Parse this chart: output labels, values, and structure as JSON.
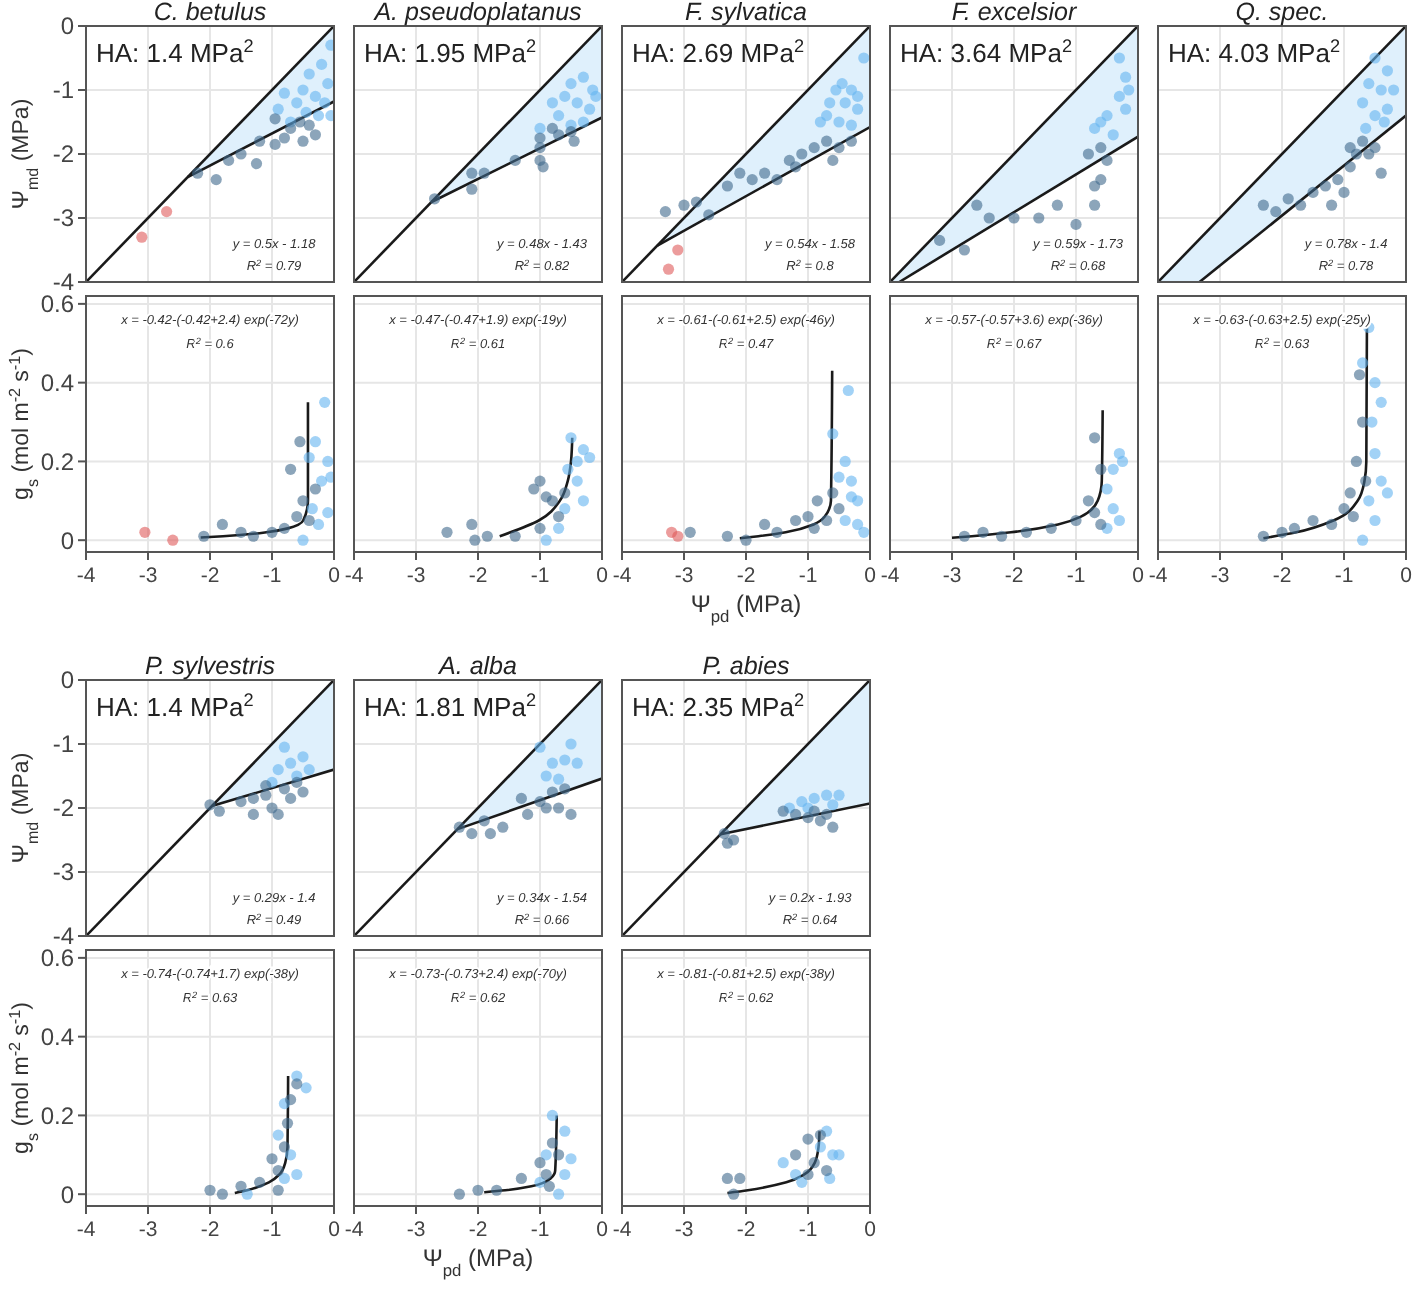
{
  "chart_data": [
    {
      "type": "scatter",
      "title": "C. betulus",
      "ylabel": "Ψ$_{md}$ (MPa)",
      "xlim": [
        -4,
        0
      ],
      "ylim": [
        -4,
        0
      ],
      "xticks": [
        -4,
        -3,
        -2,
        -1,
        0
      ],
      "yticks": [
        -4,
        -3,
        -2,
        -1,
        0
      ],
      "tick_labels": "y",
      "grid": true,
      "marker": "circle",
      "annotations": [
        "HA: 1.4 MPa$^{2}$",
        "y = 0.5x - 1.18",
        "R$^{2}$ = 0.79"
      ],
      "series": [
        {
          "type": "line",
          "marker": "none",
          "color": "#1a1a1a",
          "x": [
            -4,
            0
          ],
          "values": [
            -4,
            0
          ]
        },
        {
          "type": "line",
          "marker": "none",
          "color": "#1a1a1a",
          "x": [
            -2.36,
            0
          ],
          "values": [
            -2.36,
            -1.18
          ],
          "lower": [
            -2.36,
            -1.18
          ],
          "upper": [
            -2.36,
            0
          ]
        },
        {
          "color": "#64b4f0",
          "x": [
            -0.05,
            -0.2,
            -0.4,
            -0.1,
            -0.5,
            -0.3,
            -0.6,
            -0.15,
            -0.8,
            -0.45,
            -0.25,
            -0.7,
            -0.9,
            -0.05
          ],
          "values": [
            -0.3,
            -0.6,
            -0.75,
            -0.9,
            -1.0,
            -1.1,
            -1.2,
            -1.2,
            -1.05,
            -1.35,
            -1.4,
            -1.5,
            -1.3,
            -1.4
          ]
        },
        {
          "color": "#40698c",
          "x": [
            -2.2,
            -1.9,
            -1.7,
            -1.5,
            -1.25,
            -1.2,
            -0.95,
            -0.8,
            -0.95,
            -0.7,
            -0.55,
            -0.4,
            -0.3,
            -0.5
          ],
          "values": [
            -2.3,
            -2.4,
            -2.1,
            -2.0,
            -2.15,
            -1.8,
            -1.85,
            -1.75,
            -1.45,
            -1.6,
            -1.5,
            -1.55,
            -1.7,
            -1.8
          ]
        },
        {
          "color": "#e05a5a",
          "x": [
            -3.1,
            -2.7
          ],
          "values": [
            -3.3,
            -2.9
          ]
        }
      ]
    },
    {
      "type": "scatter",
      "title": "A. pseudoplatanus",
      "xlim": [
        -4,
        0
      ],
      "ylim": [
        -4,
        0
      ],
      "xticks": [
        -4,
        -3,
        -2,
        -1,
        0
      ],
      "yticks": [
        -4,
        -3,
        -2,
        -1,
        0
      ],
      "tick_labels": false,
      "grid": true,
      "marker": "circle",
      "annotations": [
        "HA: 1.95 MPa$^{2}$",
        "y = 0.48x - 1.43",
        "R$^{2}$ = 0.82"
      ],
      "series": [
        {
          "type": "line",
          "marker": "none",
          "color": "#1a1a1a",
          "x": [
            -4,
            0
          ],
          "values": [
            -4,
            0
          ]
        },
        {
          "type": "line",
          "marker": "none",
          "color": "#1a1a1a",
          "x": [
            -2.75,
            0
          ],
          "values": [
            -2.75,
            -1.43
          ],
          "lower": [
            -2.75,
            -1.43
          ],
          "upper": [
            -2.75,
            0
          ]
        },
        {
          "color": "#64b4f0",
          "x": [
            -0.1,
            -0.3,
            -0.5,
            -0.2,
            -0.4,
            -0.6,
            -0.7,
            -0.3,
            -0.5,
            -0.15,
            -1.0,
            -0.8
          ],
          "values": [
            -1.1,
            -0.8,
            -0.9,
            -1.3,
            -1.2,
            -1.1,
            -1.4,
            -1.5,
            -1.55,
            -1.0,
            -1.6,
            -1.2
          ]
        },
        {
          "color": "#40698c",
          "x": [
            -2.7,
            -2.1,
            -2.1,
            -1.9,
            -1.4,
            -1.0,
            -1.0,
            -0.95,
            -1.0,
            -0.7,
            -0.5,
            -0.45,
            -0.8
          ],
          "values": [
            -2.7,
            -2.55,
            -2.3,
            -2.3,
            -2.1,
            -1.9,
            -2.1,
            -2.2,
            -1.75,
            -1.7,
            -1.65,
            -1.8,
            -1.6
          ]
        }
      ]
    },
    {
      "type": "scatter",
      "title": "F. sylvatica",
      "xlim": [
        -4,
        0
      ],
      "ylim": [
        -4,
        0
      ],
      "xticks": [
        -4,
        -3,
        -2,
        -1,
        0
      ],
      "yticks": [
        -4,
        -3,
        -2,
        -1,
        0
      ],
      "tick_labels": false,
      "grid": true,
      "marker": "circle",
      "annotations": [
        "HA: 2.69 MPa$^{2}$",
        "y = 0.54x - 1.58",
        "R$^{2}$ = 0.8"
      ],
      "series": [
        {
          "type": "line",
          "marker": "none",
          "color": "#1a1a1a",
          "x": [
            -4,
            0
          ],
          "values": [
            -4,
            0
          ]
        },
        {
          "type": "line",
          "marker": "none",
          "color": "#1a1a1a",
          "x": [
            -3.43,
            0
          ],
          "values": [
            -3.43,
            -1.58
          ],
          "lower": [
            -3.43,
            -1.58
          ],
          "upper": [
            -3.43,
            0
          ]
        },
        {
          "color": "#64b4f0",
          "x": [
            -0.1,
            -0.3,
            -0.55,
            -0.4,
            -0.2,
            -0.7,
            -0.5,
            -0.3,
            -0.65,
            -0.45,
            -0.8,
            -0.2
          ],
          "values": [
            -0.5,
            -1.0,
            -1.0,
            -1.2,
            -1.3,
            -1.4,
            -1.5,
            -1.55,
            -1.2,
            -0.9,
            -1.5,
            -1.1
          ]
        },
        {
          "color": "#40698c",
          "x": [
            -3.3,
            -3.0,
            -2.8,
            -2.6,
            -2.3,
            -2.1,
            -1.9,
            -1.7,
            -1.5,
            -1.3,
            -1.1,
            -0.9,
            -0.7,
            -0.5,
            -0.3,
            -0.6,
            -1.2
          ],
          "values": [
            -2.9,
            -2.8,
            -2.75,
            -2.95,
            -2.5,
            -2.3,
            -2.4,
            -2.3,
            -2.4,
            -2.1,
            -2.0,
            -1.9,
            -1.8,
            -1.9,
            -1.8,
            -2.1,
            -2.2
          ]
        },
        {
          "color": "#e05a5a",
          "x": [
            -3.1,
            -3.25
          ],
          "values": [
            -3.5,
            -3.8
          ]
        }
      ]
    },
    {
      "type": "scatter",
      "title": "F. excelsior",
      "xlim": [
        -4,
        0
      ],
      "ylim": [
        -4,
        0
      ],
      "xticks": [
        -4,
        -3,
        -2,
        -1,
        0
      ],
      "yticks": [
        -4,
        -3,
        -2,
        -1,
        0
      ],
      "tick_labels": false,
      "grid": true,
      "marker": "circle",
      "annotations": [
        "HA: 3.64 MPa$^{2}$",
        "y = 0.59x - 1.73",
        "R$^{2}$ = 0.68"
      ],
      "series": [
        {
          "type": "line",
          "marker": "none",
          "color": "#1a1a1a",
          "x": [
            -4,
            0
          ],
          "values": [
            -4,
            0
          ]
        },
        {
          "type": "line",
          "marker": "none",
          "color": "#1a1a1a",
          "x": [
            -4,
            -3.85,
            0
          ],
          "values": [
            null,
            -4,
            -1.73
          ],
          "lower": [
            -4,
            -4,
            -1.73
          ],
          "upper": [
            -4,
            -3.85,
            0
          ]
        },
        {
          "color": "#64b4f0",
          "x": [
            -0.3,
            -0.2,
            -0.3,
            -0.15,
            -0.5,
            -0.6,
            -0.4,
            -0.2,
            -0.7
          ],
          "values": [
            -0.5,
            -0.8,
            -1.1,
            -1.0,
            -1.4,
            -1.5,
            -1.7,
            -1.3,
            -1.6
          ]
        },
        {
          "color": "#40698c",
          "x": [
            -3.2,
            -2.8,
            -2.4,
            -2.0,
            -1.6,
            -1.0,
            -1.3,
            -2.6,
            -0.7,
            -0.6,
            -0.8,
            -0.6,
            -0.7,
            -0.5
          ],
          "values": [
            -3.35,
            -3.5,
            -3.0,
            -3.0,
            -3.0,
            -3.1,
            -2.8,
            -2.8,
            -2.5,
            -2.4,
            -2.0,
            -1.9,
            -2.8,
            -2.1
          ]
        }
      ]
    },
    {
      "type": "scatter",
      "title": "Q. spec.",
      "xlim": [
        -4,
        0
      ],
      "ylim": [
        -4,
        0
      ],
      "xticks": [
        -4,
        -3,
        -2,
        -1,
        0
      ],
      "yticks": [
        -4,
        -3,
        -2,
        -1,
        0
      ],
      "tick_labels": false,
      "grid": true,
      "marker": "circle",
      "annotations": [
        "HA: 4.03 MPa$^{2}$",
        "y = 0.78x - 1.4",
        "R$^{2}$ = 0.78"
      ],
      "series": [
        {
          "type": "line",
          "marker": "none",
          "color": "#1a1a1a",
          "x": [
            -4,
            0
          ],
          "values": [
            -4,
            0
          ]
        },
        {
          "type": "line",
          "marker": "none",
          "color": "#1a1a1a",
          "x": [
            -4,
            -3.33,
            0
          ],
          "values": [
            null,
            -4,
            -1.4
          ],
          "lower": [
            -4,
            -4,
            -1.4
          ],
          "upper": [
            -4,
            -3.33,
            0
          ]
        },
        {
          "color": "#64b4f0",
          "x": [
            -0.5,
            -0.3,
            -0.6,
            -0.4,
            -0.2,
            -0.7,
            -0.3,
            -0.5,
            -0.65,
            -0.35
          ],
          "values": [
            -0.5,
            -0.7,
            -0.9,
            -1.0,
            -1.0,
            -1.2,
            -1.3,
            -1.4,
            -1.6,
            -1.5
          ]
        },
        {
          "color": "#40698c",
          "x": [
            -2.3,
            -2.1,
            -1.9,
            -1.7,
            -1.5,
            -1.3,
            -1.1,
            -1.0,
            -0.9,
            -0.8,
            -0.7,
            -0.6,
            -0.5,
            -0.9,
            -1.2,
            -0.4
          ],
          "values": [
            -2.8,
            -2.9,
            -2.7,
            -2.8,
            -2.6,
            -2.5,
            -2.4,
            -2.6,
            -2.2,
            -2.0,
            -1.8,
            -2.0,
            -1.9,
            -1.9,
            -2.8,
            -2.3
          ]
        }
      ]
    },
    {
      "type": "scatter",
      "ylabel": "g$_{s}$ (mol m$^{-2}$ s$^{-1}$)",
      "xlim": [
        -4,
        0
      ],
      "ylim": [
        -0.03,
        0.62
      ],
      "xticks": [
        -4,
        -3,
        -2,
        -1,
        0
      ],
      "yticks": [
        0,
        0.2,
        0.4,
        0.6
      ],
      "grid": true,
      "marker": "circle",
      "annotations": [
        "x = -0.42-(-0.42+2.4) exp(-72y)",
        "R$^{2}$ = 0.6"
      ],
      "series": [
        {
          "type": "line",
          "marker": "none",
          "color": "#1a1a1a",
          "x": [
            -2.15,
            -1.79,
            -1.09,
            -0.745,
            -0.497,
            -0.42,
            -0.42
          ],
          "values": [
            0.007,
            0.01,
            0.02,
            0.03,
            0.05,
            0.1,
            0.35
          ]
        },
        {
          "color": "#64b4f0",
          "x": [
            -0.3,
            -0.15,
            -0.1,
            -0.2,
            -0.4,
            -0.1,
            -0.25,
            -0.5,
            -0.05,
            -0.35
          ],
          "values": [
            0.25,
            0.35,
            0.2,
            0.15,
            0.21,
            0.07,
            0.04,
            0.0,
            0.16,
            0.08
          ]
        },
        {
          "color": "#40698c",
          "x": [
            -2.1,
            -1.8,
            -1.5,
            -1.3,
            -1.0,
            -0.7,
            -0.55,
            -0.8,
            -0.6,
            -0.5,
            -0.4,
            -0.3
          ],
          "values": [
            0.01,
            0.04,
            0.02,
            0.01,
            0.02,
            0.18,
            0.25,
            0.03,
            0.06,
            0.1,
            0.05,
            0.13
          ]
        },
        {
          "color": "#e05a5a",
          "x": [
            -3.05,
            -2.6
          ],
          "values": [
            0.02,
            0.0
          ]
        }
      ]
    },
    {
      "type": "scatter",
      "xlim": [
        -4,
        0
      ],
      "ylim": [
        -0.03,
        0.62
      ],
      "xticks": [
        -4,
        -3,
        -2,
        -1,
        0
      ],
      "yticks": [
        0,
        0.2,
        0.4,
        0.6
      ],
      "tick_labels": "x",
      "grid": true,
      "marker": "circle",
      "annotations": [
        "x = -0.47-(-0.47+1.9) exp(-19y)",
        "R$^{2}$ = 0.61"
      ],
      "series": [
        {
          "type": "line",
          "marker": "none",
          "color": "#1a1a1a",
          "x": [
            -1.65,
            -1.02,
            -0.68,
            -0.553,
            -0.5,
            -0.48
          ],
          "values": [
            0.01,
            0.05,
            0.1,
            0.15,
            0.2,
            0.26
          ]
        },
        {
          "color": "#64b4f0",
          "x": [
            -0.5,
            -0.4,
            -0.3,
            -0.2,
            -0.55,
            -0.4,
            -0.6,
            -0.9,
            -0.7,
            -0.3
          ],
          "values": [
            0.26,
            0.2,
            0.23,
            0.21,
            0.18,
            0.15,
            0.08,
            0.0,
            0.03,
            0.1
          ]
        },
        {
          "color": "#40698c",
          "x": [
            -2.5,
            -2.1,
            -2.05,
            -1.85,
            -1.4,
            -1.0,
            -1.1,
            -0.9,
            -0.8,
            -0.7,
            -1.0,
            -0.6
          ],
          "values": [
            0.02,
            0.04,
            0.0,
            0.01,
            0.01,
            0.15,
            0.13,
            0.11,
            0.1,
            0.06,
            0.03,
            0.12
          ]
        }
      ]
    },
    {
      "type": "scatter",
      "xlabel": "Ψ$_{pd}$ (MPa)",
      "xlim": [
        -4,
        0
      ],
      "ylim": [
        -0.03,
        0.62
      ],
      "xticks": [
        -4,
        -3,
        -2,
        -1,
        0
      ],
      "yticks": [
        0,
        0.2,
        0.4,
        0.6
      ],
      "tick_labels": "x",
      "grid": true,
      "marker": "circle",
      "annotations": [
        "x = -0.61-(-0.61+2.5) exp(-46y)",
        "R$^{2}$ = 0.47"
      ],
      "series": [
        {
          "type": "line",
          "marker": "none",
          "color": "#1a1a1a",
          "x": [
            -2.1,
            -1.8,
            -1.36,
            -0.91,
            -0.73,
            -0.63,
            -0.61
          ],
          "values": [
            0.005,
            0.01,
            0.02,
            0.04,
            0.06,
            0.1,
            0.43
          ]
        },
        {
          "color": "#64b4f0",
          "x": [
            -0.35,
            -0.4,
            -0.5,
            -0.3,
            -0.2,
            -0.4,
            -0.2,
            -0.6,
            -0.3,
            -0.1
          ],
          "values": [
            0.38,
            0.2,
            0.16,
            0.15,
            0.1,
            0.05,
            0.04,
            0.27,
            0.11,
            0.02
          ]
        },
        {
          "color": "#40698c",
          "x": [
            -2.9,
            -2.3,
            -2.0,
            -1.7,
            -1.5,
            -1.2,
            -1.0,
            -0.85,
            -0.7,
            -0.6,
            -0.9,
            -0.5
          ],
          "values": [
            0.02,
            0.01,
            0.0,
            0.04,
            0.02,
            0.05,
            0.06,
            0.1,
            0.05,
            0.12,
            0.03,
            0.08
          ]
        },
        {
          "color": "#e05a5a",
          "x": [
            -3.2,
            -3.1
          ],
          "values": [
            0.02,
            0.01
          ]
        }
      ]
    },
    {
      "type": "scatter",
      "xlim": [
        -4,
        0
      ],
      "ylim": [
        -0.03,
        0.62
      ],
      "xticks": [
        -4,
        -3,
        -2,
        -1,
        0
      ],
      "yticks": [
        0,
        0.2,
        0.4,
        0.6
      ],
      "tick_labels": "x",
      "grid": true,
      "marker": "circle",
      "annotations": [
        "x = -0.57-(-0.57+3.6) exp(-36y)",
        "R$^{2}$ = 0.67"
      ],
      "series": [
        {
          "type": "line",
          "marker": "none",
          "color": "#1a1a1a",
          "x": [
            -3.0,
            -2.68,
            -2.05,
            -1.29,
            -0.92,
            -0.65,
            -0.584,
            -0.57
          ],
          "values": [
            0.006,
            0.01,
            0.02,
            0.04,
            0.06,
            0.1,
            0.15,
            0.33
          ]
        },
        {
          "color": "#64b4f0",
          "x": [
            -0.3,
            -0.25,
            -0.4,
            -0.5,
            -0.4,
            -0.5,
            -0.3
          ],
          "values": [
            0.22,
            0.2,
            0.18,
            0.13,
            0.08,
            0.03,
            0.05
          ]
        },
        {
          "color": "#40698c",
          "x": [
            -2.8,
            -2.5,
            -2.2,
            -1.8,
            -1.4,
            -1.0,
            -0.7,
            -0.6,
            -0.8,
            -0.7,
            -0.6
          ],
          "values": [
            0.01,
            0.02,
            0.01,
            0.02,
            0.03,
            0.05,
            0.26,
            0.18,
            0.1,
            0.07,
            0.04
          ]
        }
      ]
    },
    {
      "type": "scatter",
      "xlim": [
        -4,
        0
      ],
      "ylim": [
        -0.03,
        0.62
      ],
      "xticks": [
        -4,
        -3,
        -2,
        -1,
        0
      ],
      "yticks": [
        0,
        0.2,
        0.4,
        0.6
      ],
      "tick_labels": "x",
      "grid": true,
      "marker": "circle",
      "annotations": [
        "x = -0.63-(-0.63+2.5) exp(-25y)",
        "R$^{2}$ = 0.63"
      ],
      "series": [
        {
          "type": "line",
          "marker": "none",
          "color": "#1a1a1a",
          "x": [
            -2.3,
            -1.77,
            -1.17,
            -0.78,
            -0.67,
            -0.64,
            -0.63
          ],
          "values": [
            0.005,
            0.02,
            0.05,
            0.1,
            0.15,
            0.2,
            0.55
          ]
        },
        {
          "color": "#64b4f0",
          "x": [
            -0.6,
            -0.7,
            -0.5,
            -0.4,
            -0.55,
            -0.5,
            -0.4,
            -0.6,
            -0.5,
            -0.3,
            -0.7
          ],
          "values": [
            0.54,
            0.45,
            0.4,
            0.35,
            0.3,
            0.22,
            0.15,
            0.1,
            0.05,
            0.12,
            0.0
          ]
        },
        {
          "color": "#40698c",
          "x": [
            -2.3,
            -2.0,
            -1.8,
            -1.5,
            -1.2,
            -1.0,
            -0.9,
            -0.8,
            -0.7,
            -0.75,
            -0.65,
            -0.85
          ],
          "values": [
            0.01,
            0.02,
            0.03,
            0.05,
            0.04,
            0.08,
            0.12,
            0.2,
            0.3,
            0.42,
            0.15,
            0.06
          ]
        }
      ]
    },
    {
      "type": "scatter",
      "title": "P. sylvestris",
      "ylabel": "Ψ$_{md}$ (MPa)",
      "xlim": [
        -4,
        0
      ],
      "ylim": [
        -4,
        0
      ],
      "xticks": [
        -4,
        -3,
        -2,
        -1,
        0
      ],
      "yticks": [
        -4,
        -3,
        -2,
        -1,
        0
      ],
      "tick_labels": "y",
      "grid": true,
      "marker": "circle",
      "annotations": [
        "HA: 1.4 MPa$^{2}$",
        "y = 0.29x - 1.4",
        "R$^{2}$ = 0.49"
      ],
      "series": [
        {
          "type": "line",
          "marker": "none",
          "color": "#1a1a1a",
          "x": [
            -4,
            0
          ],
          "values": [
            -4,
            0
          ]
        },
        {
          "type": "line",
          "marker": "none",
          "color": "#1a1a1a",
          "x": [
            -1.97,
            0
          ],
          "values": [
            -1.97,
            -1.4
          ],
          "lower": [
            -1.97,
            -1.4
          ],
          "upper": [
            -1.97,
            0
          ]
        },
        {
          "color": "#64b4f0",
          "x": [
            -0.8,
            -0.5,
            -0.9,
            -0.6,
            -0.4,
            -1.0,
            -0.7
          ],
          "values": [
            -1.05,
            -1.2,
            -1.4,
            -1.5,
            -1.4,
            -1.6,
            -1.3
          ]
        },
        {
          "color": "#40698c",
          "x": [
            -2.0,
            -1.85,
            -1.5,
            -1.3,
            -1.3,
            -1.1,
            -1.0,
            -0.9,
            -0.8,
            -0.7,
            -0.6,
            -0.5,
            -1.1
          ],
          "values": [
            -1.95,
            -2.05,
            -1.9,
            -1.85,
            -2.1,
            -1.8,
            -2.0,
            -2.1,
            -1.7,
            -1.85,
            -1.6,
            -1.75,
            -1.65
          ]
        }
      ]
    },
    {
      "type": "scatter",
      "title": "A. alba",
      "xlim": [
        -4,
        0
      ],
      "ylim": [
        -4,
        0
      ],
      "xticks": [
        -4,
        -3,
        -2,
        -1,
        0
      ],
      "yticks": [
        -4,
        -3,
        -2,
        -1,
        0
      ],
      "tick_labels": false,
      "grid": true,
      "marker": "circle",
      "annotations": [
        "HA: 1.81 MPa$^{2}$",
        "y = 0.34x - 1.54",
        "R$^{2}$ = 0.66"
      ],
      "series": [
        {
          "type": "line",
          "marker": "none",
          "color": "#1a1a1a",
          "x": [
            -4,
            0
          ],
          "values": [
            -4,
            0
          ]
        },
        {
          "type": "line",
          "marker": "none",
          "color": "#1a1a1a",
          "x": [
            -2.33,
            0
          ],
          "values": [
            -2.33,
            -1.54
          ],
          "lower": [
            -2.33,
            -1.54
          ],
          "upper": [
            -2.33,
            0
          ]
        },
        {
          "color": "#64b4f0",
          "x": [
            -1.0,
            -0.5,
            -0.8,
            -0.6,
            -0.9,
            -0.7,
            -0.4
          ],
          "values": [
            -1.05,
            -1.0,
            -1.3,
            -1.25,
            -1.5,
            -1.55,
            -1.3
          ]
        },
        {
          "color": "#40698c",
          "x": [
            -2.3,
            -2.1,
            -1.9,
            -1.8,
            -1.6,
            -1.3,
            -1.2,
            -1.0,
            -0.8,
            -0.9,
            -0.6,
            -0.7,
            -0.5
          ],
          "values": [
            -2.3,
            -2.4,
            -2.2,
            -2.4,
            -2.3,
            -1.85,
            -2.1,
            -1.9,
            -1.75,
            -2.0,
            -1.7,
            -2.0,
            -2.1
          ]
        }
      ]
    },
    {
      "type": "scatter",
      "title": "P. abies",
      "xlim": [
        -4,
        0
      ],
      "ylim": [
        -4,
        0
      ],
      "xticks": [
        -4,
        -3,
        -2,
        -1,
        0
      ],
      "yticks": [
        -4,
        -3,
        -2,
        -1,
        0
      ],
      "tick_labels": false,
      "grid": true,
      "marker": "circle",
      "annotations": [
        "HA: 2.35 MPa$^{2}$",
        "y = 0.2x - 1.93",
        "R$^{2}$ = 0.64"
      ],
      "series": [
        {
          "type": "line",
          "marker": "none",
          "color": "#1a1a1a",
          "x": [
            -4,
            0
          ],
          "values": [
            -4,
            0
          ]
        },
        {
          "type": "line",
          "marker": "none",
          "color": "#1a1a1a",
          "x": [
            -2.41,
            0
          ],
          "values": [
            -2.41,
            -1.93
          ],
          "lower": [
            -2.41,
            -1.93
          ],
          "upper": [
            -2.41,
            0
          ]
        },
        {
          "color": "#64b4f0",
          "x": [
            -1.3,
            -1.1,
            -0.9,
            -0.7,
            -0.5,
            -1.0,
            -0.6
          ],
          "values": [
            -2.0,
            -1.9,
            -1.85,
            -1.8,
            -1.8,
            -2.0,
            -1.95
          ]
        },
        {
          "color": "#40698c",
          "x": [
            -2.35,
            -2.3,
            -2.2,
            -1.4,
            -1.2,
            -1.0,
            -0.9,
            -0.8,
            -0.7,
            -0.6
          ],
          "values": [
            -2.4,
            -2.55,
            -2.5,
            -2.05,
            -2.1,
            -2.15,
            -2.05,
            -2.2,
            -2.1,
            -2.3
          ]
        }
      ]
    },
    {
      "type": "scatter",
      "ylabel": "g$_{s}$ (mol m$^{-2}$ s$^{-1}$)",
      "xlim": [
        -4,
        0
      ],
      "ylim": [
        -0.03,
        0.62
      ],
      "xticks": [
        -4,
        -3,
        -2,
        -1,
        0
      ],
      "yticks": [
        0,
        0.2,
        0.4,
        0.6
      ],
      "grid": true,
      "marker": "circle",
      "annotations": [
        "x = -0.74-(-0.74+1.7) exp(-38y)",
        "R$^{2}$ = 0.63"
      ],
      "series": [
        {
          "type": "line",
          "marker": "none",
          "color": "#1a1a1a",
          "x": [
            -1.6,
            -1.4,
            -1.05,
            -0.88,
            -0.786,
            -0.75,
            -0.74
          ],
          "values": [
            0.003,
            0.01,
            0.03,
            0.05,
            0.08,
            0.12,
            0.3
          ]
        },
        {
          "color": "#64b4f0",
          "x": [
            -0.6,
            -0.45,
            -0.8,
            -0.9,
            -0.7,
            -0.6,
            -1.4,
            -0.8
          ],
          "values": [
            0.3,
            0.27,
            0.23,
            0.15,
            0.1,
            0.05,
            0.0,
            0.04
          ]
        },
        {
          "color": "#40698c",
          "x": [
            -2.0,
            -1.8,
            -1.5,
            -1.2,
            -1.0,
            -0.9,
            -0.8,
            -0.7,
            -0.6,
            -0.75,
            -0.9
          ],
          "values": [
            0.01,
            0.0,
            0.02,
            0.03,
            0.09,
            0.06,
            0.12,
            0.24,
            0.28,
            0.18,
            0.01
          ]
        }
      ]
    },
    {
      "type": "scatter",
      "xlabel": "Ψ$_{pd}$ (MPa)",
      "xlim": [
        -4,
        0
      ],
      "ylim": [
        -0.03,
        0.62
      ],
      "xticks": [
        -4,
        -3,
        -2,
        -1,
        0
      ],
      "yticks": [
        0,
        0.2,
        0.4,
        0.6
      ],
      "tick_labels": "x",
      "grid": true,
      "marker": "circle",
      "annotations": [
        "x = -0.73-(-0.73+2.4) exp(-70y)",
        "R$^{2}$ = 0.62"
      ],
      "series": [
        {
          "type": "line",
          "marker": "none",
          "color": "#1a1a1a",
          "x": [
            -1.9,
            -1.56,
            -1.14,
            -0.83,
            -0.755,
            -0.73
          ],
          "values": [
            0.005,
            0.01,
            0.02,
            0.04,
            0.06,
            0.2
          ]
        },
        {
          "color": "#64b4f0",
          "x": [
            -0.8,
            -0.6,
            -0.5,
            -0.6,
            -0.9,
            -1.0,
            -0.7
          ],
          "values": [
            0.2,
            0.16,
            0.09,
            0.05,
            0.1,
            0.03,
            0.0
          ]
        },
        {
          "color": "#40698c",
          "x": [
            -2.3,
            -2.0,
            -1.7,
            -1.3,
            -1.0,
            -0.9,
            -0.8,
            -0.7,
            -0.85
          ],
          "values": [
            0.0,
            0.01,
            0.01,
            0.04,
            0.08,
            0.05,
            0.13,
            0.1,
            0.02
          ]
        }
      ]
    },
    {
      "type": "scatter",
      "xlim": [
        -4,
        0
      ],
      "ylim": [
        -0.03,
        0.62
      ],
      "xticks": [
        -4,
        -3,
        -2,
        -1,
        0
      ],
      "yticks": [
        0,
        0.2,
        0.4,
        0.6
      ],
      "tick_labels": "x",
      "grid": true,
      "marker": "circle",
      "annotations": [
        "x = -0.81-(-0.81+2.5) exp(-38y)",
        "R$^{2}$ = 0.62"
      ],
      "series": [
        {
          "type": "line",
          "marker": "none",
          "color": "#1a1a1a",
          "x": [
            -2.3,
            -1.97,
            -1.35,
            -1.06,
            -0.89,
            -0.83,
            -0.814
          ],
          "values": [
            0.003,
            0.01,
            0.03,
            0.05,
            0.08,
            0.12,
            0.16
          ]
        },
        {
          "color": "#64b4f0",
          "x": [
            -1.4,
            -1.2,
            -0.8,
            -0.6,
            -0.5,
            -0.7,
            -1.1,
            -0.65
          ],
          "values": [
            0.08,
            0.05,
            0.12,
            0.1,
            0.1,
            0.16,
            0.03,
            0.04
          ]
        },
        {
          "color": "#40698c",
          "x": [
            -2.3,
            -2.2,
            -2.1,
            -1.2,
            -1.0,
            -0.9,
            -0.8,
            -0.7,
            -1.0
          ],
          "values": [
            0.04,
            0.0,
            0.04,
            0.1,
            0.14,
            0.08,
            0.15,
            0.06,
            0.05
          ]
        }
      ]
    }
  ]
}
